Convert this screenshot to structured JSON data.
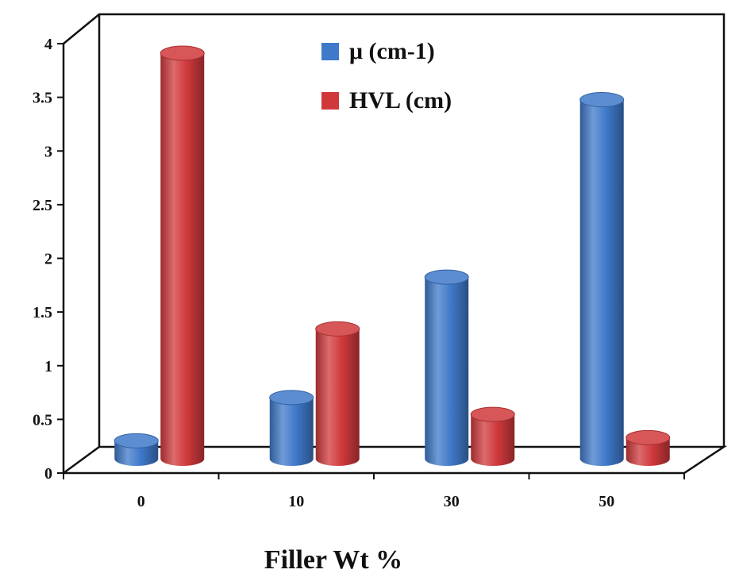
{
  "chart_data": {
    "type": "bar",
    "categories": [
      "0",
      "10",
      "30",
      "50"
    ],
    "series": [
      {
        "name": "μ (cm-1)",
        "values": [
          0.17,
          0.58,
          1.72,
          3.4
        ],
        "color": "#3f79c9"
      },
      {
        "name": "HVL (cm)",
        "values": [
          3.84,
          1.23,
          0.42,
          0.2
        ],
        "color": "#d0393c"
      }
    ],
    "title": "",
    "xlabel": "Filler Wt %",
    "ylabel": "",
    "ylim": [
      0,
      4
    ],
    "yticks": [
      "0",
      "0.5",
      "1",
      "1.5",
      "2",
      "2.5",
      "3",
      "3.5",
      "4"
    ],
    "grid": false,
    "legend_position": "top-center",
    "style": "3d-cylinder"
  }
}
